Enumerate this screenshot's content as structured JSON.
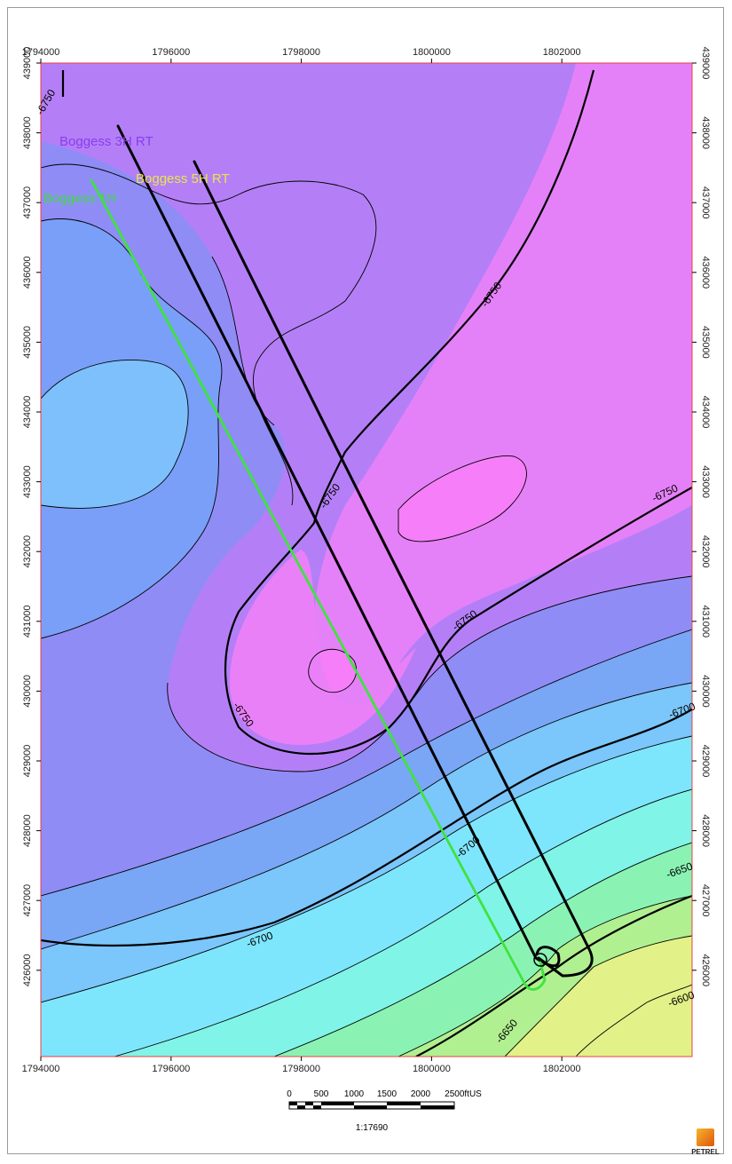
{
  "x_ticks": [
    "1794000",
    "1796000",
    "1798000",
    "1800000",
    "1802000"
  ],
  "y_ticks": [
    "439000",
    "438000",
    "437000",
    "436000",
    "435000",
    "434000",
    "433000",
    "432000",
    "431000",
    "430000",
    "429000",
    "428000",
    "427000",
    "426000"
  ],
  "contour_labels": [
    "-6750",
    "-6750",
    "-6750",
    "-6750",
    "-6750",
    "-6700",
    "-6700",
    "-6700",
    "-6650",
    "-6650",
    "-6600",
    "-6750"
  ],
  "wells": [
    {
      "name": "Boggess 3H RT",
      "color": "#8a3cf0"
    },
    {
      "name": "Boggess 5H RT",
      "color": "#e6e64a"
    },
    {
      "name": "Boggess 1H",
      "color": "#3fdc3f"
    }
  ],
  "scale_bar": {
    "ticks": [
      "0",
      "500",
      "1000",
      "1500",
      "2000",
      "2500ftUS"
    ],
    "ratio": "1:17690"
  },
  "logo_text": "PETREL",
  "colors": {
    "deep": "#7db3ff",
    "mid_blue": "#7894f6",
    "purple": "#a97cf6",
    "magenta": "#d781f8",
    "pink": "#f07ef6",
    "cyan": "#7ff3ff",
    "green": "#7cf3a0",
    "yellow": "#f4f48a"
  }
}
